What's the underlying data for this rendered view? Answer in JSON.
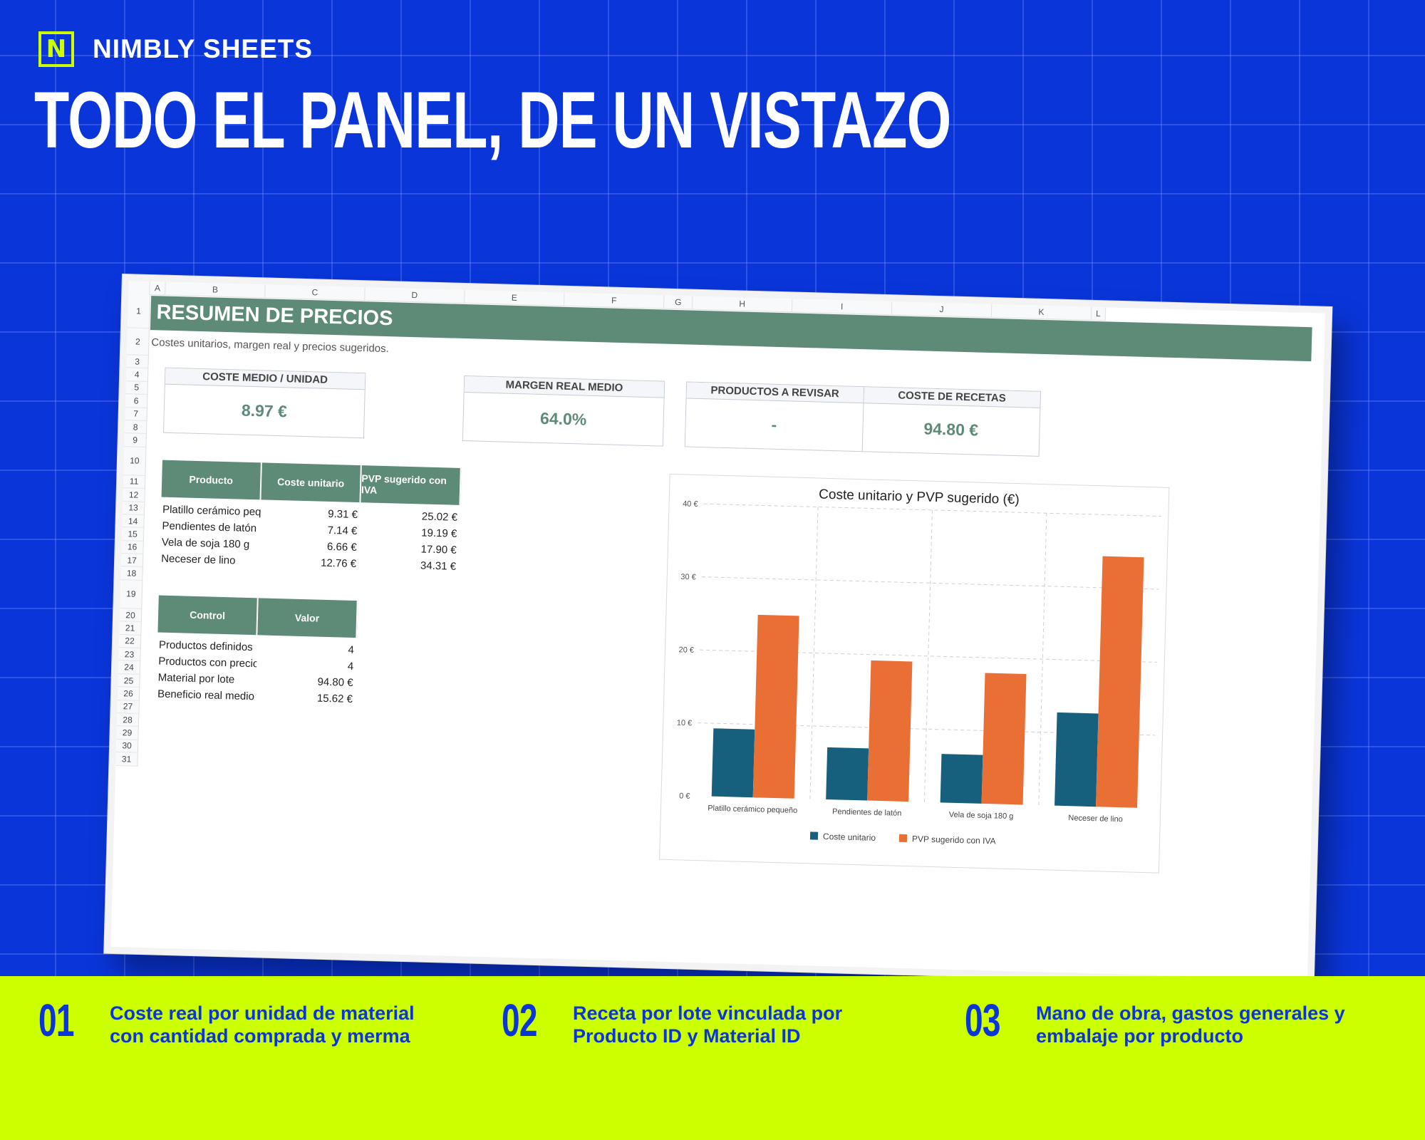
{
  "brand": {
    "logo_letter": "N",
    "name": "NIMBLY SHEETS"
  },
  "headline": "TODO EL PANEL, DE UN VISTAZO",
  "sheet": {
    "columns": [
      "A",
      "B",
      "C",
      "D",
      "E",
      "F",
      "G",
      "H",
      "I",
      "J",
      "K",
      "L"
    ],
    "rows": [
      "1",
      "2",
      "3",
      "4",
      "5",
      "6",
      "7",
      "8",
      "9",
      "10",
      "11",
      "12",
      "13",
      "14",
      "15",
      "16",
      "17",
      "18",
      "19",
      "20",
      "21",
      "22",
      "23",
      "24",
      "25",
      "26",
      "27",
      "28",
      "29",
      "30",
      "31"
    ],
    "title": "RESUMEN DE PRECIOS",
    "subtitle": "Costes unitarios, margen real y precios sugeridos.",
    "kpis": {
      "coste_medio": {
        "label": "COSTE MEDIO / UNIDAD",
        "value": "8.97 €"
      },
      "margen": {
        "label": "MARGEN REAL MEDIO",
        "value": "64.0%"
      },
      "revisar": {
        "label": "PRODUCTOS A REVISAR",
        "value": "-"
      },
      "recetas": {
        "label": "COSTE DE RECETAS",
        "value": "94.80 €"
      }
    },
    "products_table": {
      "headers": [
        "Producto",
        "Coste unitario",
        "PVP sugerido con IVA"
      ],
      "rows": [
        [
          "Platillo cerámico pequeño",
          "9.31 €",
          "25.02 €"
        ],
        [
          "Pendientes de latón",
          "7.14 €",
          "19.19 €"
        ],
        [
          "Vela de soja 180 g",
          "6.66 €",
          "17.90 €"
        ],
        [
          "Neceser de lino",
          "12.76 €",
          "34.31 €"
        ]
      ]
    },
    "control_table": {
      "headers": [
        "Control",
        "Valor"
      ],
      "rows": [
        [
          "Productos definidos",
          "4"
        ],
        [
          "Productos con precio rea",
          "4"
        ],
        [
          "Material por lote",
          "94.80 €"
        ],
        [
          "Beneficio real medio / uni",
          "15.62 €"
        ]
      ]
    }
  },
  "chart_data": {
    "type": "bar",
    "title": "Coste unitario y PVP sugerido (€)",
    "categories": [
      "Platillo cerámico pequeño",
      "Pendientes de latón",
      "Vela de soja 180 g",
      "Neceser de lino"
    ],
    "series": [
      {
        "name": "Coste unitario",
        "color": "#17607d",
        "values": [
          9.31,
          7.14,
          6.66,
          12.76
        ]
      },
      {
        "name": "PVP sugerido con IVA",
        "color": "#ea6f35",
        "values": [
          25.02,
          19.19,
          17.9,
          34.31
        ]
      }
    ],
    "yticks": [
      "0 €",
      "10 €",
      "20 €",
      "30 €",
      "40 €"
    ],
    "ylim": [
      0,
      40
    ],
    "grid": true,
    "legend": "bottom"
  },
  "features": [
    {
      "num": "01",
      "text": "Coste real por unidad de material con cantidad comprada y merma"
    },
    {
      "num": "02",
      "text": "Receta por lote vinculada por Producto ID y Material ID"
    },
    {
      "num": "03",
      "text": "Mano de obra, gastos generales y embalaje por producto"
    }
  ],
  "colors": {
    "background": "#0a35d9",
    "accent": "#ccff00",
    "header_green": "#5e8b78"
  }
}
